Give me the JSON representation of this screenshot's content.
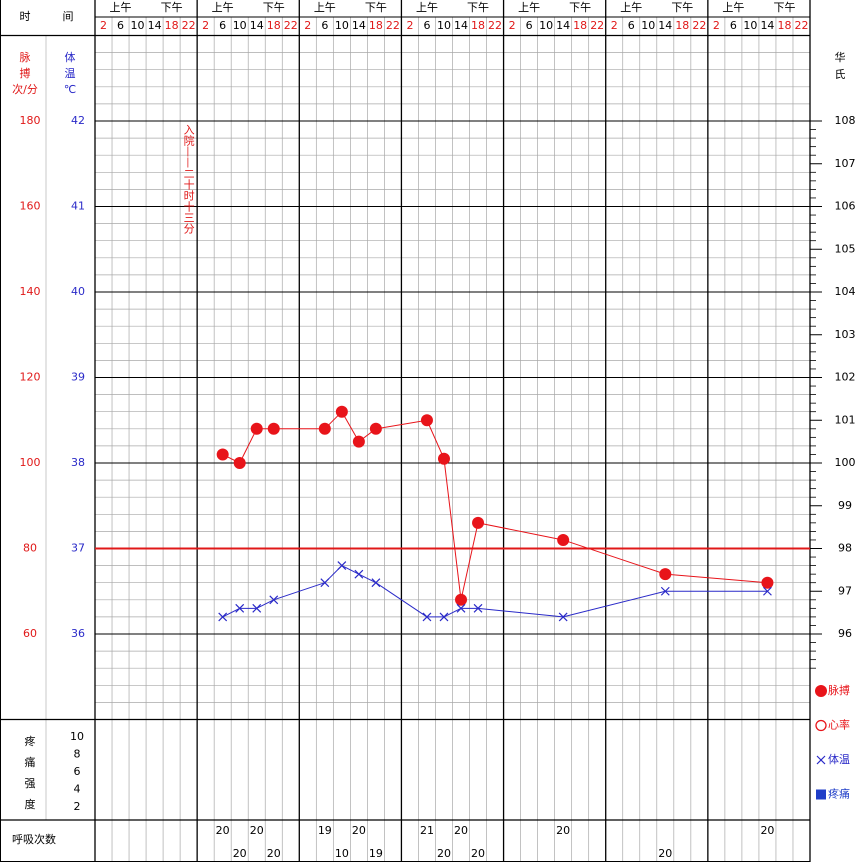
{
  "header": {
    "time_label": [
      "时",
      "间"
    ],
    "periods": [
      "上午",
      "下午"
    ]
  },
  "chart_data": {
    "type": "line",
    "categories": [
      2,
      6,
      10,
      14,
      18,
      22,
      2,
      6,
      10,
      14,
      18,
      22,
      2,
      6,
      10,
      14,
      18,
      22,
      2,
      6,
      10,
      14,
      18,
      22,
      2,
      6,
      10,
      14,
      18,
      22,
      2,
      6,
      10,
      14,
      18,
      22,
      2,
      6,
      10,
      14,
      18,
      22
    ],
    "annotation": "入院——二十时十三分",
    "ylim": [
      40,
      200
    ],
    "yticks": [
      60,
      80,
      100,
      120,
      140,
      160,
      180
    ],
    "y_label": [
      "脉",
      "搏",
      "次/分"
    ],
    "y2lim": [
      35,
      43
    ],
    "y2ticks": [
      36,
      37,
      38,
      39,
      40,
      41,
      42
    ],
    "y2_label": [
      "体",
      "温",
      "℃"
    ],
    "y3lim": [
      94,
      110
    ],
    "y3ticks": [
      96,
      97,
      98,
      99,
      100,
      101,
      102,
      103,
      104,
      105,
      106,
      107,
      108
    ],
    "y3_label": [
      "华",
      "氏"
    ],
    "normal_line": 37,
    "normal_color": "#e01818",
    "series": [
      {
        "name": "脉搏",
        "color": "#e8141a",
        "marker": "dot",
        "values": [
          null,
          null,
          null,
          null,
          null,
          null,
          null,
          102,
          100,
          108,
          108,
          null,
          null,
          108,
          112,
          105,
          108,
          null,
          null,
          110,
          101,
          68,
          86,
          null,
          null,
          null,
          null,
          82,
          null,
          null,
          null,
          null,
          null,
          74,
          null,
          null,
          null,
          null,
          null,
          72,
          null,
          null
        ]
      },
      {
        "name": "体温",
        "color": "#2a2ac8",
        "marker": "x",
        "axis": "y2",
        "values": [
          null,
          null,
          null,
          null,
          null,
          null,
          null,
          36.2,
          36.3,
          36.3,
          36.4,
          null,
          null,
          36.6,
          36.8,
          36.7,
          36.6,
          null,
          null,
          36.2,
          36.2,
          36.3,
          36.3,
          null,
          null,
          null,
          null,
          36.2,
          null,
          null,
          null,
          null,
          null,
          36.5,
          null,
          null,
          null,
          null,
          null,
          36.5,
          null,
          null
        ]
      }
    ],
    "legend_extra": [
      {
        "name": "心率",
        "color": "#e8141a",
        "marker": "circle"
      },
      {
        "name": "疼痛",
        "color": "#1f3ec8",
        "marker": "square"
      }
    ],
    "pain": {
      "label": [
        "疼",
        "痛",
        "强",
        "度"
      ],
      "ylim": [
        0.5,
        12
      ],
      "yticks": [
        10,
        8,
        6,
        4,
        2
      ]
    },
    "respiration": {
      "label": "呼吸次数",
      "values": [
        null,
        null,
        null,
        null,
        null,
        null,
        null,
        20,
        20,
        20,
        20,
        null,
        null,
        19,
        10,
        20,
        19,
        null,
        null,
        21,
        20,
        20,
        20,
        null,
        null,
        null,
        null,
        20,
        null,
        null,
        null,
        null,
        null,
        20,
        null,
        null,
        null,
        null,
        null,
        20,
        null,
        null
      ]
    }
  }
}
